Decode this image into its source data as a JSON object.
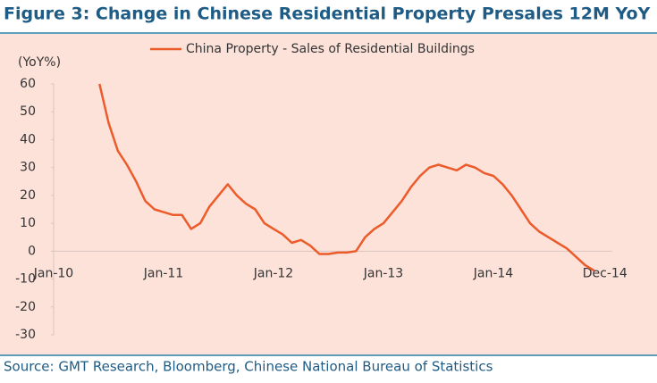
{
  "chart_data": {
    "type": "line",
    "title": "Figure 3: Change in Chinese Residential Property Presales 12M YoY",
    "y_label": "(YoY%)",
    "source": "Source: GMT Research, Bloomberg, Chinese National Bureau of Statistics",
    "legend": "top",
    "categories": [
      "Jan-10",
      null,
      null,
      null,
      null,
      null,
      null,
      null,
      null,
      null,
      null,
      null,
      "Jan-11",
      null,
      null,
      null,
      null,
      null,
      null,
      null,
      null,
      null,
      null,
      null,
      "Jan-12",
      null,
      null,
      null,
      null,
      null,
      null,
      null,
      null,
      null,
      null,
      null,
      "Jan-13",
      null,
      null,
      null,
      null,
      null,
      null,
      null,
      null,
      null,
      null,
      null,
      "Jan-14",
      null,
      null,
      null,
      null,
      null,
      null,
      null,
      null,
      null,
      null,
      "Dec-14"
    ],
    "series": [
      {
        "name": "China Property - Sales of Residential Buildings",
        "color": "#ec5b2a",
        "values": [
          null,
          null,
          null,
          null,
          null,
          60,
          46,
          36,
          31,
          25,
          18,
          15,
          14,
          13,
          13,
          8,
          10,
          16,
          20,
          24,
          20,
          17,
          15,
          10,
          8,
          6,
          3,
          4,
          2,
          -1,
          -1,
          -0.5,
          -0.5,
          0,
          5,
          8,
          10,
          14,
          18,
          23,
          27,
          30,
          31,
          30,
          29,
          31,
          30,
          28,
          27,
          24,
          20,
          15,
          10,
          7,
          5,
          3,
          1,
          -2,
          -5,
          -7
        ]
      }
    ],
    "ylim": [
      -30,
      60
    ],
    "yticks": [
      60,
      50,
      40,
      30,
      20,
      10,
      0,
      -10,
      -20,
      -30
    ]
  }
}
